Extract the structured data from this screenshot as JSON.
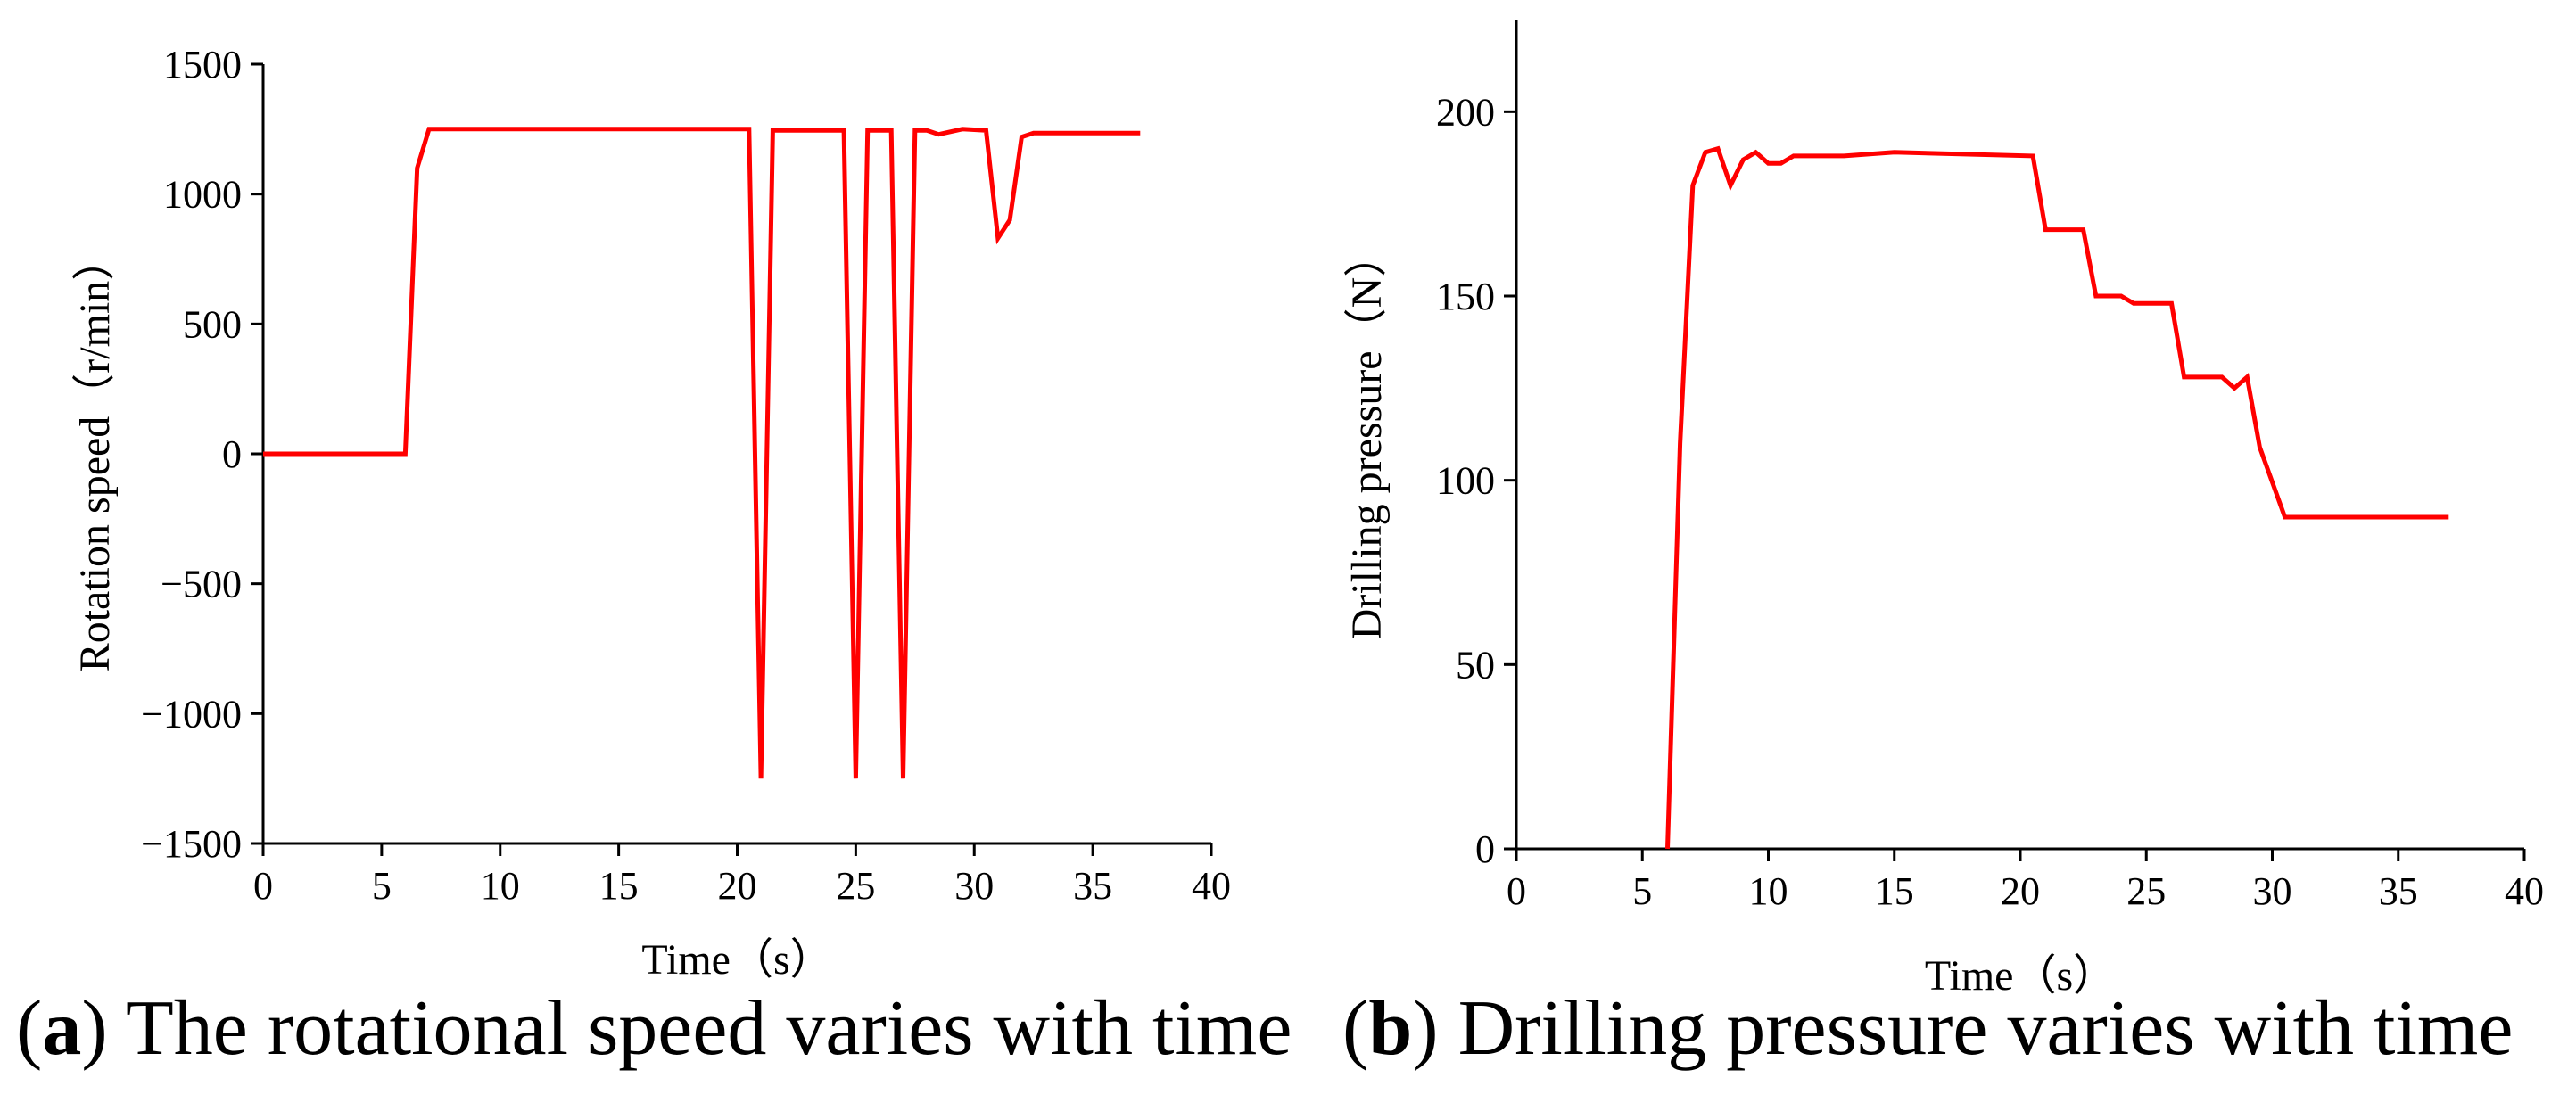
{
  "chart_data": [
    {
      "type": "line",
      "panel": "a",
      "title": "",
      "xlabel": "Time（s）",
      "ylabel": "Rotation speed（r/min）",
      "xlim": [
        0,
        40
      ],
      "ylim": [
        -1500,
        1500
      ],
      "xticks": [
        0,
        5,
        10,
        15,
        20,
        25,
        30,
        35,
        40
      ],
      "yticks": [
        -1500,
        -1000,
        -500,
        0,
        500,
        1000,
        1500
      ],
      "grid": false,
      "color": "#ff0000",
      "series": [
        {
          "name": "Rotation speed",
          "x": [
            0,
            6,
            6.5,
            7,
            20.5,
            21,
            21.5,
            24.5,
            25,
            25.5,
            26.5,
            27,
            27.5,
            28,
            28.5,
            29.5,
            30.5,
            31,
            31.5,
            32,
            32.5,
            37
          ],
          "y": [
            0,
            0,
            1100,
            1250,
            1250,
            -1250,
            1245,
            1245,
            -1250,
            1245,
            1245,
            -1250,
            1245,
            1245,
            1230,
            1250,
            1245,
            830,
            900,
            1220,
            1235,
            1235
          ]
        }
      ]
    },
    {
      "type": "line",
      "panel": "b",
      "title": "",
      "xlabel": "Time（s）",
      "ylabel": "Drilling pressure（N）",
      "xlim": [
        0,
        40
      ],
      "ylim": [
        0,
        225
      ],
      "xticks": [
        0,
        5,
        10,
        15,
        20,
        25,
        30,
        35,
        40
      ],
      "yticks": [
        0,
        50,
        100,
        150,
        200
      ],
      "grid": false,
      "color": "#ff0000",
      "series": [
        {
          "name": "Drilling pressure",
          "x": [
            6,
            6.5,
            7,
            7.5,
            8,
            8.5,
            9,
            9.5,
            10,
            10.5,
            11,
            13,
            15,
            20.5,
            21,
            22.5,
            23,
            24,
            24.5,
            26,
            26.5,
            28,
            28.5,
            29,
            29.5,
            30.5,
            37
          ],
          "y": [
            0,
            110,
            180,
            189,
            190,
            180,
            187,
            189,
            186,
            186,
            188,
            188,
            189,
            188,
            168,
            168,
            150,
            150,
            148,
            148,
            128,
            128,
            125,
            128,
            109,
            90,
            90
          ]
        }
      ]
    }
  ],
  "captions": [
    {
      "letter": "a",
      "text": "The rotational speed varies with time"
    },
    {
      "letter": "b",
      "text": "Drilling pressure varies with time"
    }
  ]
}
